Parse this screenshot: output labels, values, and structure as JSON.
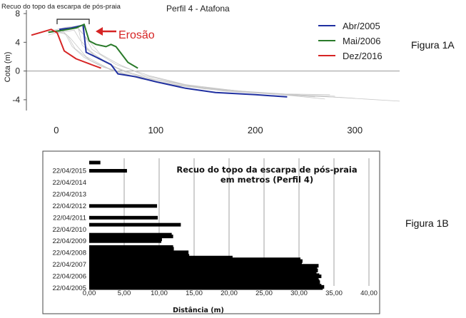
{
  "figure_labels": {
    "a": "Figura 1A",
    "b": "Figura 1B"
  },
  "chart_data": [
    {
      "type": "line",
      "title": "Perfil 4 - Atafona",
      "ylabel": "Cota (m)",
      "xlabel": "",
      "xlim": [
        -30,
        345
      ],
      "ylim": [
        -5.5,
        8.5
      ],
      "x_ticks": [
        0,
        100,
        200,
        300
      ],
      "y_ticks": [
        8,
        4,
        0,
        -4
      ],
      "y_tick_labels": [
        "8",
        "4",
        "0",
        "-4"
      ],
      "legend_position": "top-right",
      "annotations": {
        "bracket_text": "Recuo do topo da escarpa de pós-praia",
        "erosion_text": "Erosão",
        "erosion_color": "#d62424"
      },
      "series": [
        {
          "name": "Abr/2005",
          "color": "#1f2fa0",
          "points": [
            [
              3,
              5.8
            ],
            [
              15,
              6.0
            ],
            [
              27,
              6.4
            ],
            [
              30,
              2.6
            ],
            [
              45,
              1.6
            ],
            [
              55,
              0.9
            ],
            [
              62,
              -0.4
            ],
            [
              80,
              -0.8
            ],
            [
              100,
              -1.5
            ],
            [
              130,
              -2.4
            ],
            [
              160,
              -3.0
            ],
            [
              200,
              -3.3
            ],
            [
              232,
              -3.6
            ]
          ]
        },
        {
          "name": "Mai/2006",
          "color": "#2a7a2a",
          "points": [
            [
              -8,
              5.4
            ],
            [
              8,
              5.7
            ],
            [
              20,
              6.0
            ],
            [
              28,
              6.5
            ],
            [
              33,
              4.2
            ],
            [
              40,
              3.7
            ],
            [
              50,
              3.4
            ],
            [
              55,
              3.7
            ],
            [
              60,
              3.4
            ],
            [
              72,
              1.2
            ],
            [
              82,
              0.4
            ]
          ]
        },
        {
          "name": "Dez/2016",
          "color": "#d62424",
          "points": [
            [
              -25,
              5.0
            ],
            [
              -5,
              5.8
            ],
            [
              1,
              5.3
            ],
            [
              8,
              2.8
            ],
            [
              20,
              1.7
            ],
            [
              35,
              0.9
            ],
            [
              45,
              0.4
            ]
          ]
        }
      ],
      "background_profiles": [
        [
          [
            -5,
            5.6
          ],
          [
            10,
            6.1
          ],
          [
            26,
            6.3
          ],
          [
            30,
            3.2
          ],
          [
            48,
            1.4
          ],
          [
            70,
            -0.2
          ],
          [
            110,
            -1.8
          ],
          [
            170,
            -2.8
          ],
          [
            240,
            -3.4
          ],
          [
            290,
            -3.7
          ]
        ],
        [
          [
            0,
            5.5
          ],
          [
            12,
            5.9
          ],
          [
            22,
            6.1
          ],
          [
            26,
            3.6
          ],
          [
            42,
            1.7
          ],
          [
            65,
            0.1
          ],
          [
            100,
            -1.2
          ],
          [
            160,
            -2.6
          ],
          [
            230,
            -3.3
          ],
          [
            280,
            -3.5
          ]
        ],
        [
          [
            2,
            5.3
          ],
          [
            18,
            5.7
          ],
          [
            24,
            4.3
          ],
          [
            38,
            2.2
          ],
          [
            58,
            0.6
          ],
          [
            90,
            -1.0
          ],
          [
            140,
            -2.2
          ],
          [
            210,
            -3.1
          ],
          [
            260,
            -3.6
          ]
        ],
        [
          [
            -8,
            5.0
          ],
          [
            6,
            5.6
          ],
          [
            14,
            4.6
          ],
          [
            30,
            2.0
          ],
          [
            52,
            0.4
          ],
          [
            85,
            -1.1
          ],
          [
            150,
            -2.5
          ],
          [
            220,
            -3.2
          ],
          [
            270,
            -3.9
          ]
        ],
        [
          [
            4,
            5.9
          ],
          [
            20,
            6.2
          ],
          [
            28,
            5.0
          ],
          [
            36,
            3.0
          ],
          [
            60,
            0.9
          ],
          [
            95,
            -0.7
          ],
          [
            130,
            -1.9
          ],
          [
            190,
            -2.9
          ],
          [
            250,
            -3.4
          ],
          [
            300,
            -3.8
          ]
        ],
        [
          [
            0,
            5.4
          ],
          [
            9,
            5.2
          ],
          [
            16,
            3.4
          ],
          [
            28,
            1.9
          ],
          [
            46,
            0.6
          ],
          [
            75,
            -0.6
          ],
          [
            120,
            -2.0
          ],
          [
            180,
            -2.8
          ],
          [
            240,
            -3.3
          ],
          [
            345,
            -4.2
          ]
        ],
        [
          [
            6,
            5.7
          ],
          [
            22,
            6.0
          ],
          [
            29,
            4.8
          ],
          [
            44,
            2.4
          ],
          [
            62,
            1.0
          ],
          [
            88,
            -0.6
          ],
          [
            135,
            -2.1
          ],
          [
            200,
            -3.0
          ],
          [
            265,
            -3.5
          ]
        ],
        [
          [
            1,
            5.6
          ],
          [
            11,
            5.0
          ],
          [
            19,
            3.1
          ],
          [
            34,
            1.5
          ],
          [
            54,
            0.2
          ],
          [
            80,
            -0.9
          ],
          [
            115,
            -1.9
          ],
          [
            175,
            -2.7
          ],
          [
            230,
            -3.2
          ],
          [
            275,
            -3.3
          ]
        ]
      ]
    },
    {
      "type": "bar",
      "orientation": "horizontal",
      "title": "Recuo do topo da escarpa de pós-praia\nem metros (Perfil 4)",
      "xlabel": "Distância (m)",
      "ylabel": "",
      "xlim": [
        0,
        40
      ],
      "x_ticks": [
        0,
        5,
        10,
        15,
        20,
        25,
        30,
        35,
        40
      ],
      "x_tick_labels": [
        "0,00",
        "5,00",
        "10,00",
        "15,00",
        "20,00",
        "25,00",
        "30,00",
        "35,00",
        "40,00"
      ],
      "grid": true,
      "bar_color": "#000000",
      "categories": [
        "22/04/2005",
        "22/04/2006",
        "22/04/2007",
        "22/04/2008",
        "22/04/2009",
        "22/04/2010",
        "22/04/2011",
        "22/04/2012",
        "22/04/2013",
        "22/04/2014",
        "22/04/2015"
      ],
      "bars": [
        {
          "y": 2005.0,
          "value": 33.4
        },
        {
          "y": 2005.1,
          "value": 33.6
        },
        {
          "y": 2005.2,
          "value": 33.2
        },
        {
          "y": 2005.3,
          "value": 32.9
        },
        {
          "y": 2005.4,
          "value": 32.8
        },
        {
          "y": 2005.5,
          "value": 33.0
        },
        {
          "y": 2005.6,
          "value": 32.9
        },
        {
          "y": 2005.7,
          "value": 32.8
        },
        {
          "y": 2005.8,
          "value": 32.6
        },
        {
          "y": 2005.9,
          "value": 32.7
        },
        {
          "y": 2006.0,
          "value": 33.2
        },
        {
          "y": 2006.1,
          "value": 32.9
        },
        {
          "y": 2006.2,
          "value": 32.5
        },
        {
          "y": 2006.3,
          "value": 32.4
        },
        {
          "y": 2006.4,
          "value": 32.3
        },
        {
          "y": 2006.5,
          "value": 32.7
        },
        {
          "y": 2006.6,
          "value": 32.5
        },
        {
          "y": 2006.7,
          "value": 32.3
        },
        {
          "y": 2006.8,
          "value": 32.6
        },
        {
          "y": 2006.9,
          "value": 32.8
        },
        {
          "y": 2007.0,
          "value": 30.3
        },
        {
          "y": 2007.15,
          "value": 30.4
        },
        {
          "y": 2007.3,
          "value": 30.5
        },
        {
          "y": 2007.45,
          "value": 30.2
        },
        {
          "y": 2007.6,
          "value": 20.5
        },
        {
          "y": 2007.75,
          "value": 14.3
        },
        {
          "y": 2007.9,
          "value": 14.1
        },
        {
          "y": 2008.05,
          "value": 14.2
        },
        {
          "y": 2008.2,
          "value": 12.0
        },
        {
          "y": 2008.35,
          "value": 12.1
        },
        {
          "y": 2008.5,
          "value": 12.0
        },
        {
          "y": 2009.0,
          "value": 10.3
        },
        {
          "y": 2009.15,
          "value": 10.4
        },
        {
          "y": 2009.4,
          "value": 12.0
        },
        {
          "y": 2009.55,
          "value": 11.8
        },
        {
          "y": 2010.4,
          "value": 13.1
        },
        {
          "y": 2011.0,
          "value": 9.8
        },
        {
          "y": 2012.0,
          "value": 9.7
        },
        {
          "y": 2015.0,
          "value": 5.4
        },
        {
          "y": 2015.7,
          "value": 1.6
        }
      ]
    }
  ]
}
